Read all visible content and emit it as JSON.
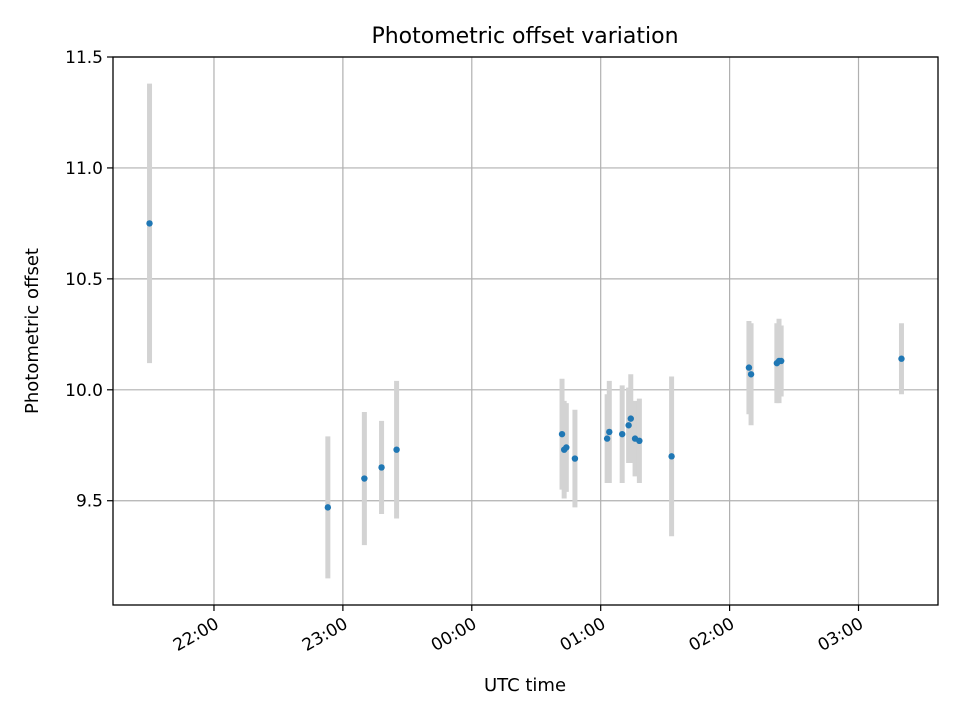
{
  "chart_data": {
    "type": "scatter",
    "title": "Photometric offset variation",
    "xlabel": "UTC time",
    "ylabel": "Photometric offset",
    "x_unit": "UTC",
    "xlim": [
      "21:13",
      "03:37"
    ],
    "ylim": [
      9.03,
      11.5
    ],
    "x_ticks": [
      "22:00",
      "23:00",
      "00:00",
      "01:00",
      "02:00",
      "03:00"
    ],
    "y_ticks": [
      9.5,
      10.0,
      10.5,
      11.0,
      11.5
    ],
    "y_tick_labels": [
      "9.5",
      "10.0",
      "10.5",
      "11.0",
      "11.5"
    ],
    "grid": true,
    "legend": "none",
    "errorbar_color": "#d3d3d3",
    "marker_color": "#1f77b4",
    "points": [
      {
        "x": "21:30",
        "y": 10.75,
        "yerr": 0.63
      },
      {
        "x": "22:53",
        "y": 9.47,
        "yerr": 0.32
      },
      {
        "x": "23:10",
        "y": 9.6,
        "yerr": 0.3
      },
      {
        "x": "23:18",
        "y": 9.65,
        "yerr": 0.21
      },
      {
        "x": "23:25",
        "y": 9.73,
        "yerr": 0.31
      },
      {
        "x": "00:42",
        "y": 9.8,
        "yerr": 0.25
      },
      {
        "x": "00:43",
        "y": 9.73,
        "yerr": 0.22
      },
      {
        "x": "00:44",
        "y": 9.74,
        "yerr": 0.2
      },
      {
        "x": "00:48",
        "y": 9.69,
        "yerr": 0.22
      },
      {
        "x": "01:03",
        "y": 9.78,
        "yerr": 0.2
      },
      {
        "x": "01:04",
        "y": 9.81,
        "yerr": 0.23
      },
      {
        "x": "01:10",
        "y": 9.8,
        "yerr": 0.22
      },
      {
        "x": "01:13",
        "y": 9.84,
        "yerr": 0.17
      },
      {
        "x": "01:14",
        "y": 9.87,
        "yerr": 0.2
      },
      {
        "x": "01:16",
        "y": 9.78,
        "yerr": 0.17
      },
      {
        "x": "01:18",
        "y": 9.77,
        "yerr": 0.19
      },
      {
        "x": "01:33",
        "y": 9.7,
        "yerr": 0.36
      },
      {
        "x": "02:09",
        "y": 10.1,
        "yerr": 0.21
      },
      {
        "x": "02:10",
        "y": 10.07,
        "yerr": 0.23
      },
      {
        "x": "02:22",
        "y": 10.12,
        "yerr": 0.18
      },
      {
        "x": "02:23",
        "y": 10.13,
        "yerr": 0.19
      },
      {
        "x": "02:24",
        "y": 10.13,
        "yerr": 0.16
      },
      {
        "x": "03:20",
        "y": 10.14,
        "yerr": 0.16
      }
    ]
  }
}
